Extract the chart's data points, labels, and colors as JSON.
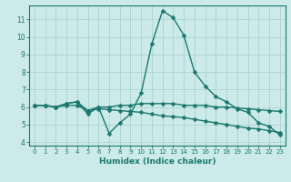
{
  "xlabel": "Humidex (Indice chaleur)",
  "xlim": [
    -0.5,
    23.5
  ],
  "ylim": [
    3.8,
    11.8
  ],
  "bg_color": "#cceae7",
  "line_color": "#1a7870",
  "grid_color": "#aad4cf",
  "tick_label_color": "#1a7870",
  "series": [
    {
      "x": [
        0,
        1,
        2,
        3,
        4,
        5,
        6,
        7,
        8,
        9,
        10,
        11,
        12,
        13,
        14,
        15,
        16,
        17,
        18,
        19,
        20,
        21,
        22,
        23
      ],
      "y": [
        6.1,
        6.1,
        6.0,
        6.2,
        6.3,
        5.6,
        6.0,
        4.5,
        5.1,
        5.6,
        6.8,
        9.6,
        11.5,
        11.1,
        10.1,
        8.0,
        7.2,
        6.6,
        6.3,
        5.9,
        5.7,
        5.1,
        4.9,
        4.4
      ]
    },
    {
      "x": [
        0,
        1,
        2,
        3,
        4,
        5,
        6,
        7,
        8,
        9,
        10,
        11,
        12,
        13,
        14,
        15,
        16,
        17,
        18,
        19,
        20,
        21,
        22,
        23
      ],
      "y": [
        6.1,
        6.1,
        6.0,
        6.2,
        6.3,
        5.8,
        6.0,
        6.0,
        6.1,
        6.1,
        6.2,
        6.2,
        6.2,
        6.2,
        6.1,
        6.1,
        6.1,
        6.0,
        6.0,
        5.95,
        5.9,
        5.85,
        5.8,
        5.75
      ]
    },
    {
      "x": [
        0,
        1,
        2,
        3,
        4,
        5,
        6,
        7,
        8,
        9,
        10,
        11,
        12,
        13,
        14,
        15,
        16,
        17,
        18,
        19,
        20,
        21,
        22,
        23
      ],
      "y": [
        6.1,
        6.1,
        6.0,
        6.1,
        6.1,
        5.8,
        5.9,
        5.85,
        5.8,
        5.75,
        5.7,
        5.6,
        5.5,
        5.45,
        5.4,
        5.3,
        5.2,
        5.1,
        5.0,
        4.9,
        4.8,
        4.75,
        4.65,
        4.55
      ]
    }
  ],
  "xticks": [
    0,
    1,
    2,
    3,
    4,
    5,
    6,
    7,
    8,
    9,
    10,
    11,
    12,
    13,
    14,
    15,
    16,
    17,
    18,
    19,
    20,
    21,
    22,
    23
  ],
  "yticks": [
    4,
    5,
    6,
    7,
    8,
    9,
    10,
    11
  ],
  "marker": "D",
  "marker_size": 2.5,
  "linewidth": 1.0
}
